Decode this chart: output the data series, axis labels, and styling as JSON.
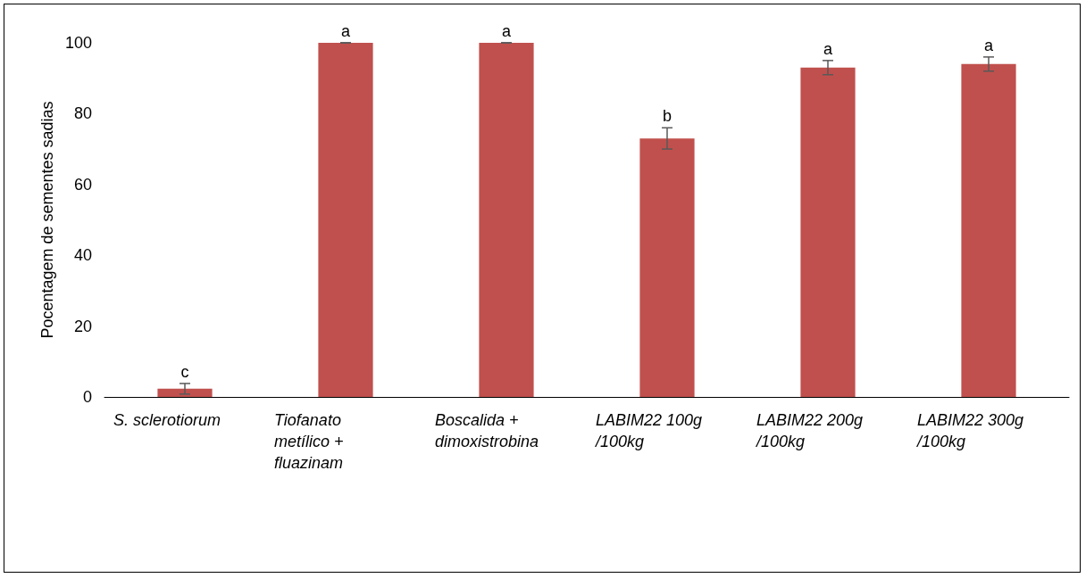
{
  "chart_data": {
    "type": "bar",
    "ylabel": "Pocentagem de sementes sadias",
    "categories": [
      "S. sclerotiorum",
      "Tiofanato metílico + fluazinam",
      "Boscalida + dimoxistrobina",
      "LABIM22 100g/100kg",
      "LABIM22 200g/100kg",
      "LABIM22 300g/100kg"
    ],
    "values": [
      2.3,
      100,
      100,
      73,
      93,
      94
    ],
    "errors": [
      1.5,
      0,
      0,
      3,
      2,
      2
    ],
    "color": "#c0504d",
    "ylim": [
      0,
      100
    ],
    "yticks": [
      0,
      20,
      40,
      60,
      80,
      100
    ],
    "grid": false,
    "annotations": [
      {
        "text": "c",
        "x": "S. sclerotiorum",
        "y": 2.3
      },
      {
        "text": "a",
        "x": "Tiofanato metílico + fluazinam",
        "y": 100
      },
      {
        "text": "a",
        "x": "Boscalida + dimoxistrobina",
        "y": 100
      },
      {
        "text": "b",
        "x": "LABIM22 100g/100kg",
        "y": 73
      },
      {
        "text": "a",
        "x": "LABIM22 200g/100kg",
        "y": 93
      },
      {
        "text": "a",
        "x": "LABIM22 300g/100kg",
        "y": 94
      }
    ]
  }
}
